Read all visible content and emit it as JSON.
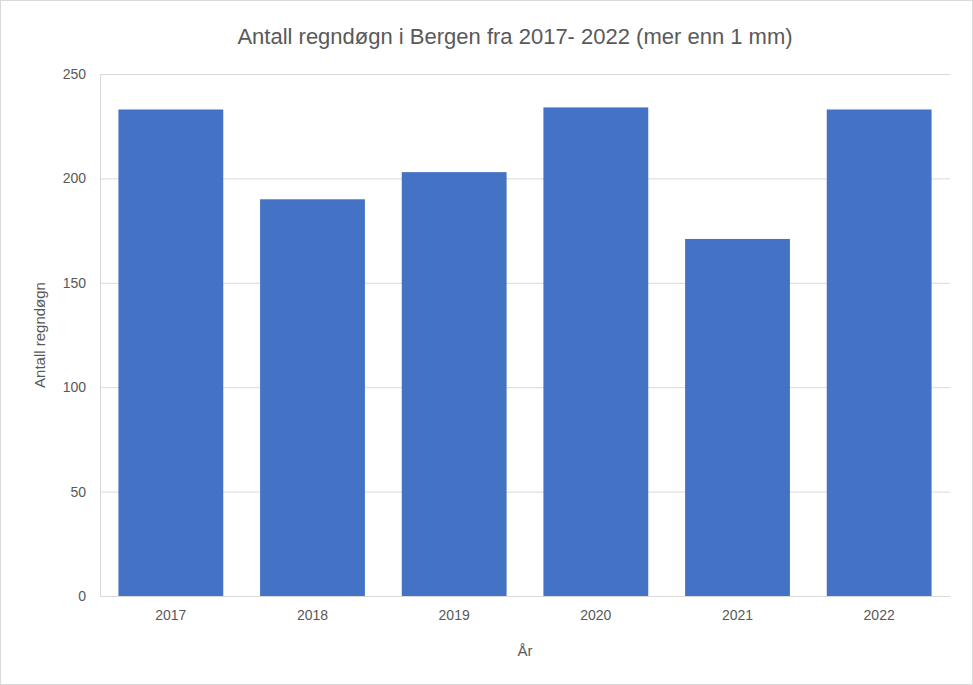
{
  "chart_data": {
    "type": "bar",
    "title": "Antall regndøgn i Bergen fra 2017- 2022 (mer enn 1 mm)",
    "x_label": "År",
    "y_label": "Antall regndøgn",
    "categories": [
      "2017",
      "2018",
      "2019",
      "2020",
      "2021",
      "2022"
    ],
    "values": [
      233,
      190,
      203,
      234,
      171,
      233
    ],
    "color": "#4472c4",
    "ylim": [
      0,
      250
    ],
    "yticks": [
      0,
      50,
      100,
      150,
      200,
      250
    ],
    "grid": true
  }
}
